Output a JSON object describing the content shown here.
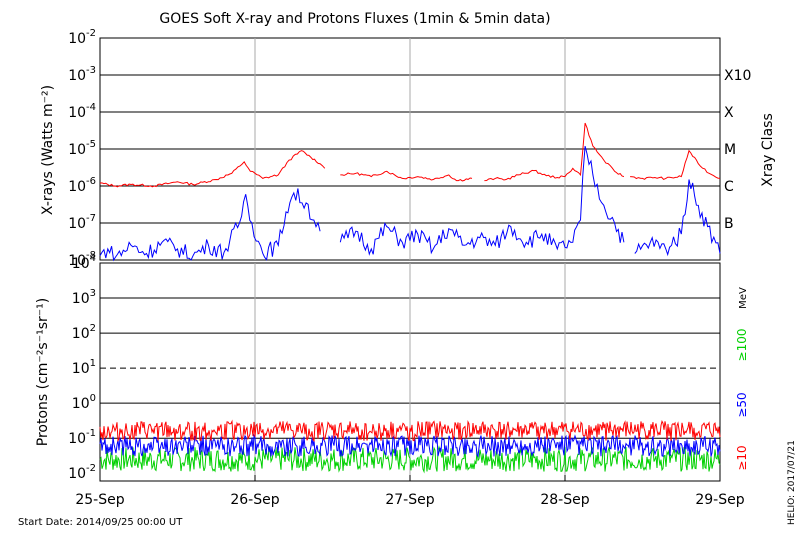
{
  "chart_data": {
    "title": "GOES Soft X-ray and Protons Fluxes   (1min & 5min data)",
    "footer_left": "Start Date: 2014/09/25 00:00 UT",
    "footer_right": "HELIO: 2017/07/21",
    "x_range": [
      "2014-09-25",
      "2014-09-29"
    ],
    "x_ticks": [
      "25-Sep",
      "26-Sep",
      "27-Sep",
      "28-Sep",
      "29-Sep"
    ],
    "panels": [
      {
        "id": "xray",
        "type": "line",
        "scale": "log",
        "ylim": [
          1e-08,
          0.01
        ],
        "ylabel": "X-rays (Watts m⁻²)",
        "y_ticks": [
          {
            "mant": "10",
            "exp": "-8"
          },
          {
            "mant": "10",
            "exp": "-7"
          },
          {
            "mant": "10",
            "exp": "-6"
          },
          {
            "mant": "10",
            "exp": "-5"
          },
          {
            "mant": "10",
            "exp": "-4"
          },
          {
            "mant": "10",
            "exp": "-3"
          },
          {
            "mant": "10",
            "exp": "-2"
          }
        ],
        "right_label": "Xray Class",
        "classes": [
          {
            "label": "B",
            "value": 1e-07
          },
          {
            "label": "C",
            "value": 1e-06
          },
          {
            "label": "M",
            "value": 1e-05
          },
          {
            "label": "X",
            "value": 0.0001
          },
          {
            "label": "X10",
            "value": 0.001
          }
        ],
        "series": [
          {
            "color": "#ff0000",
            "points": [
              [
                0,
                1.2e-06
              ],
              [
                0.1,
                1e-06
              ],
              [
                0.2,
                1.1e-06
              ],
              [
                0.35,
                1e-06
              ],
              [
                0.5,
                1.3e-06
              ],
              [
                0.6,
                1.1e-06
              ],
              [
                0.75,
                1.5e-06
              ],
              [
                0.85,
                2.2e-06
              ],
              [
                0.93,
                4.5e-06
              ],
              [
                0.97,
                2.5e-06
              ],
              [
                1.0,
                2.2e-06
              ],
              [
                1.05,
                1.6e-06
              ],
              [
                1.15,
                2e-06
              ],
              [
                1.22,
                5e-06
              ],
              [
                1.3,
                9e-06
              ],
              [
                1.36,
                6e-06
              ],
              [
                1.42,
                4e-06
              ],
              [
                1.45,
                3e-06
              ],
              null,
              [
                1.55,
                2e-06
              ],
              [
                1.65,
                2.2e-06
              ],
              [
                1.75,
                1.8e-06
              ],
              [
                1.85,
                2.5e-06
              ],
              [
                1.95,
                1.6e-06
              ],
              [
                2.05,
                1.8e-06
              ],
              [
                2.15,
                1.5e-06
              ],
              [
                2.25,
                2e-06
              ],
              [
                2.3,
                1.4e-06
              ],
              [
                2.4,
                1.6e-06
              ],
              null,
              [
                2.48,
                1.4e-06
              ],
              [
                2.55,
                1.6e-06
              ],
              [
                2.62,
                1.5e-06
              ],
              [
                2.7,
                2e-06
              ],
              [
                2.8,
                2.6e-06
              ],
              [
                2.88,
                1.9e-06
              ],
              [
                2.95,
                1.7e-06
              ],
              [
                3.0,
                1.8e-06
              ],
              [
                3.05,
                3e-06
              ],
              [
                3.1,
                2e-06
              ],
              [
                3.13,
                5e-05
              ],
              [
                3.18,
                1.2e-05
              ],
              [
                3.25,
                5e-06
              ],
              [
                3.32,
                2.5e-06
              ],
              [
                3.38,
                1.8e-06
              ],
              null,
              [
                3.42,
                1.8e-06
              ],
              [
                3.5,
                1.6e-06
              ],
              [
                3.58,
                1.7e-06
              ],
              [
                3.65,
                1.6e-06
              ],
              [
                3.75,
                1.8e-06
              ],
              [
                3.8,
                9e-06
              ],
              [
                3.86,
                4e-06
              ],
              [
                3.93,
                2.2e-06
              ],
              [
                4.0,
                1.6e-06
              ]
            ]
          },
          {
            "color": "#0000ff",
            "points": [
              [
                0,
                1.3e-08
              ],
              [
                0.05,
                2e-08
              ],
              [
                0.1,
                1.2e-08
              ],
              [
                0.2,
                2.5e-08
              ],
              [
                0.3,
                1.5e-08
              ],
              [
                0.4,
                3e-08
              ],
              [
                0.5,
                2e-08
              ],
              [
                0.6,
                1.3e-08
              ],
              [
                0.7,
                2.5e-08
              ],
              [
                0.8,
                1.6e-08
              ],
              [
                0.9,
                1e-07
              ],
              [
                0.94,
                6e-07
              ],
              [
                0.98,
                1e-07
              ],
              [
                1.05,
                1.5e-08
              ],
              [
                1.15,
                2.5e-08
              ],
              [
                1.2,
                2e-07
              ],
              [
                1.25,
                6.5e-07
              ],
              [
                1.33,
                3.5e-07
              ],
              [
                1.38,
                1.2e-07
              ],
              [
                1.42,
                6e-08
              ],
              null,
              [
                1.55,
                3e-08
              ],
              [
                1.65,
                6e-08
              ],
              [
                1.75,
                2e-08
              ],
              [
                1.85,
                8e-08
              ],
              [
                1.95,
                3e-08
              ],
              [
                2.05,
                5e-08
              ],
              [
                2.15,
                2e-08
              ],
              [
                2.25,
                7e-08
              ],
              [
                2.35,
                2.5e-08
              ],
              [
                2.45,
                4e-08
              ],
              [
                2.55,
                2.5e-08
              ],
              [
                2.65,
                8e-08
              ],
              [
                2.75,
                3e-08
              ],
              [
                2.85,
                5e-08
              ],
              [
                2.95,
                2e-08
              ],
              [
                3.05,
                3e-08
              ],
              [
                3.1,
                1.2e-07
              ],
              [
                3.13,
                1.2e-05
              ],
              [
                3.18,
                2e-06
              ],
              [
                3.25,
                3e-07
              ],
              [
                3.32,
                1e-07
              ],
              [
                3.38,
                3e-08
              ],
              null,
              [
                3.45,
                1.5e-08
              ],
              [
                3.55,
                3e-08
              ],
              [
                3.65,
                2e-08
              ],
              [
                3.75,
                5e-08
              ],
              [
                3.8,
                1.5e-06
              ],
              [
                3.86,
                3e-07
              ],
              [
                3.92,
                8e-08
              ],
              [
                4.0,
                1.5e-08
              ]
            ]
          }
        ]
      },
      {
        "id": "protons",
        "type": "line",
        "scale": "log",
        "ylim": [
          0.006,
          10000
        ],
        "ylabel": "Protons (cm⁻²s⁻¹sr⁻¹)",
        "y_ticks": [
          {
            "mant": "10",
            "exp": "-2"
          },
          {
            "mant": "10",
            "exp": "-1"
          },
          {
            "mant": "10",
            "exp": "0"
          },
          {
            "mant": "10",
            "exp": "1"
          },
          {
            "mant": "10",
            "exp": "2"
          },
          {
            "mant": "10",
            "exp": "3"
          },
          {
            "mant": "10",
            "exp": "4"
          }
        ],
        "unit_label": "MeV",
        "threshold": 10,
        "series": [
          {
            "name": "≥100",
            "color": "#00d000",
            "base": 0.025,
            "spread": 0.35
          },
          {
            "name": "≥50",
            "color": "#0000ff",
            "base": 0.06,
            "spread": 0.3
          },
          {
            "name": "≥10",
            "color": "#ff0000",
            "base": 0.16,
            "spread": 0.28
          }
        ]
      }
    ]
  }
}
